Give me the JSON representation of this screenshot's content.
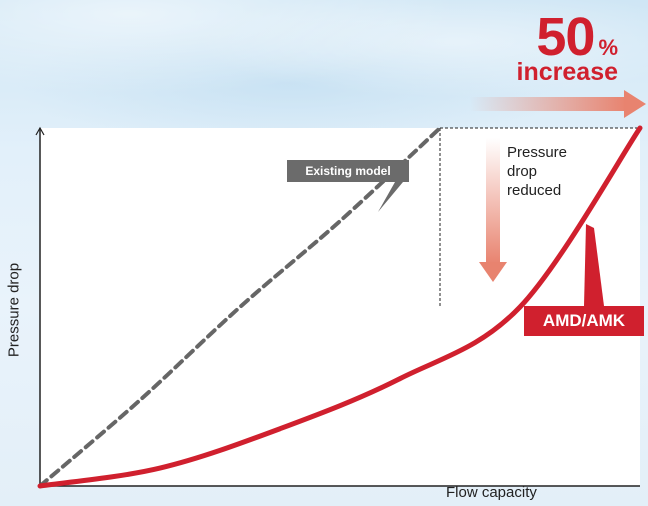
{
  "headline": {
    "value": "50",
    "unit": "%",
    "word": "increase"
  },
  "annotations": {
    "existing_model": "Existing model",
    "amd_amk": "AMD/AMK",
    "pressure_note": [
      "Pressure",
      "drop",
      "reduced"
    ]
  },
  "colors": {
    "accent_red": "#d0202e",
    "existing_gray": "#666666",
    "arrow_salmon": "#e8836f",
    "background": "#e2f0fa"
  },
  "icons": {
    "horizontal_arrow": "right-arrow-icon",
    "vertical_arrow": "down-arrow-icon"
  },
  "chart_data": {
    "type": "line",
    "title": "",
    "xlabel": "Flow capacity",
    "ylabel": "Pressure drop",
    "xlim": [
      0,
      1.5
    ],
    "ylim": [
      0,
      1
    ],
    "grid": false,
    "series": [
      {
        "name": "Existing model",
        "style": "dashed",
        "color": "#666666",
        "x": [
          0,
          0.25,
          0.5,
          0.75,
          1.0
        ],
        "y": [
          0,
          0.24,
          0.5,
          0.74,
          1.0
        ]
      },
      {
        "name": "AMD/AMK",
        "style": "solid",
        "color": "#d0202e",
        "x": [
          0,
          0.3,
          0.6,
          0.9,
          1.2,
          1.5
        ],
        "y": [
          0,
          0.05,
          0.16,
          0.3,
          0.5,
          1.0
        ]
      }
    ],
    "reference": {
      "x": 1.0,
      "y_from": 0.5,
      "y_to": 1.0
    }
  }
}
